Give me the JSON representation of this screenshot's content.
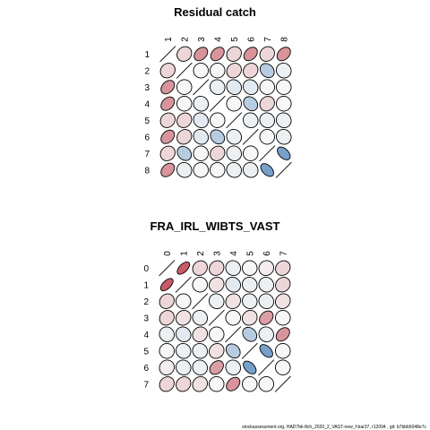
{
  "footer": "stockassessment.org,  HAD7bk-8ch_2020_2_VAST-new_f-bar37,  r12094 ,  git: b7bbb5048e7c",
  "colors": {
    "low": "#2166ac",
    "mid": "#f7f7f7",
    "high": "#b2182b"
  },
  "chart_data": [
    {
      "type": "heatmap",
      "title": "Residual catch",
      "labels": [
        "1",
        "2",
        "3",
        "4",
        "5",
        "6",
        "7",
        "8"
      ],
      "matrix": [
        [
          1,
          0.15,
          0.45,
          0.45,
          0.15,
          0.45,
          0.15,
          0.45
        ],
        [
          0.15,
          1,
          0,
          0,
          0.15,
          0.15,
          -0.3,
          -0.05
        ],
        [
          0.45,
          0,
          1,
          -0.05,
          -0.1,
          -0.1,
          0,
          0
        ],
        [
          0.45,
          0,
          -0.05,
          1,
          0,
          -0.3,
          0.15,
          0
        ],
        [
          0.15,
          0.15,
          -0.1,
          0,
          1,
          -0.05,
          -0.05,
          -0.05
        ],
        [
          0.45,
          0.15,
          -0.1,
          -0.3,
          -0.05,
          1,
          0,
          -0.05
        ],
        [
          0.15,
          -0.3,
          0,
          0.15,
          -0.05,
          0,
          1,
          -0.6
        ],
        [
          0.45,
          -0.05,
          0,
          0,
          -0.05,
          -0.05,
          -0.6,
          1
        ]
      ]
    },
    {
      "type": "heatmap",
      "title": "FRA_IRL_WIBTS_VAST",
      "labels": [
        "0",
        "1",
        "2",
        "3",
        "4",
        "5",
        "6",
        "7"
      ],
      "matrix": [
        [
          1,
          0.7,
          0.15,
          0.15,
          -0.05,
          0,
          0.05,
          0.15
        ],
        [
          0.7,
          1,
          0,
          0.1,
          -0.1,
          -0.05,
          -0.05,
          0.15
        ],
        [
          0.15,
          0,
          1,
          -0.05,
          0.1,
          -0.05,
          -0.05,
          0.1
        ],
        [
          0.15,
          0.1,
          -0.05,
          1,
          0,
          0.1,
          0.4,
          0
        ],
        [
          -0.05,
          -0.1,
          0.1,
          0,
          1,
          -0.3,
          -0.05,
          0.45
        ],
        [
          0,
          -0.05,
          -0.05,
          0.1,
          -0.3,
          1,
          -0.6,
          0
        ],
        [
          0.05,
          -0.05,
          -0.05,
          0.4,
          -0.05,
          -0.6,
          1,
          0
        ],
        [
          0.15,
          0.15,
          0.1,
          0,
          0.45,
          0,
          0,
          1
        ]
      ]
    }
  ]
}
